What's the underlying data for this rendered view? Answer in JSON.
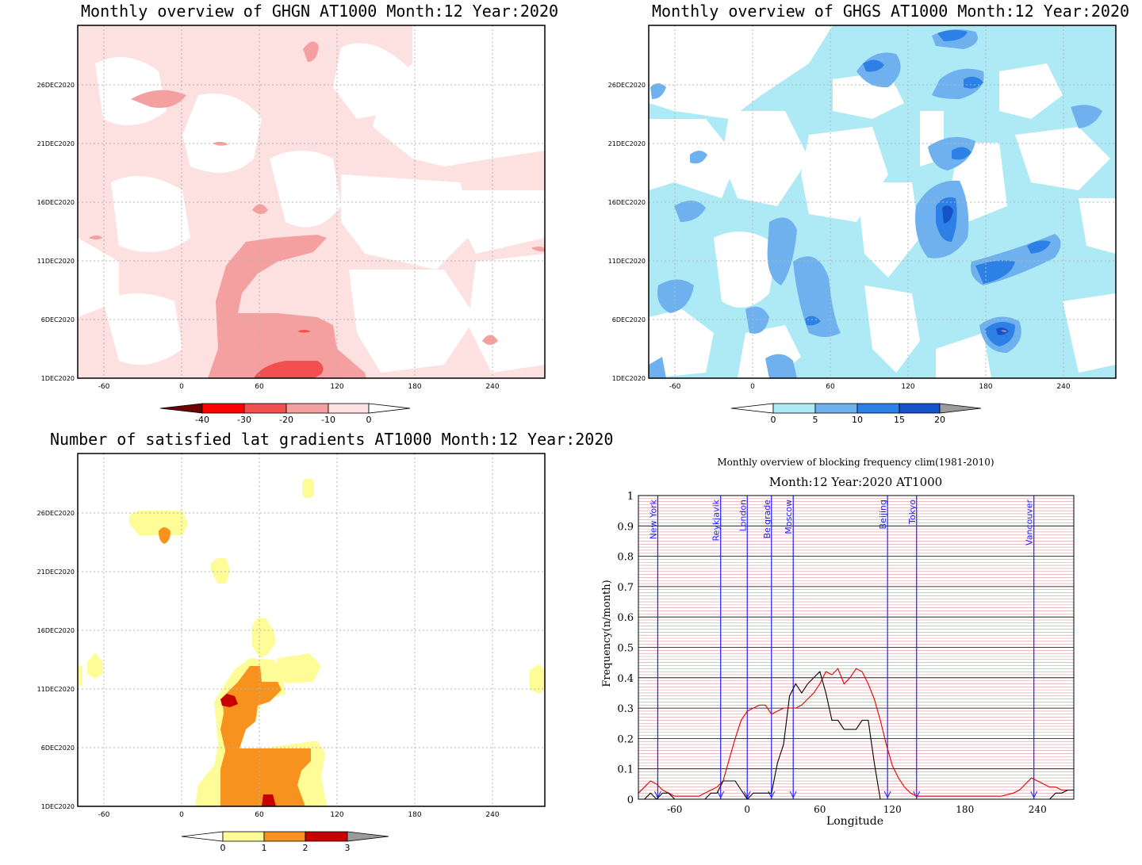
{
  "chart_data": [
    {
      "type": "heatmap",
      "title": "Monthly overview of GHGN AT1000 Month:12 Year:2020",
      "x_ticks": [
        "-60",
        "0",
        "60",
        "120",
        "180",
        "240"
      ],
      "y_ticks": [
        "1DEC2020",
        "6DEC2020",
        "11DEC2020",
        "16DEC2020",
        "21DEC2020",
        "26DEC2020"
      ],
      "colorbar": {
        "labels": [
          "-40",
          "-30",
          "-20",
          "-10",
          "0"
        ],
        "colors": [
          "#6e0000",
          "#ff0000",
          "#f25050",
          "#f5a0a0",
          "#fde0e0",
          "#ffffff"
        ]
      },
      "grid": true
    },
    {
      "type": "heatmap",
      "title": "Monthly overview of GHGS AT1000 Month:12 Year:2020",
      "x_ticks": [
        "-60",
        "0",
        "60",
        "120",
        "180",
        "240"
      ],
      "y_ticks": [
        "1DEC2020",
        "6DEC2020",
        "11DEC2020",
        "16DEC2020",
        "21DEC2020",
        "26DEC2020"
      ],
      "colorbar": {
        "labels": [
          "0",
          "5",
          "10",
          "15",
          "20"
        ],
        "colors": [
          "#ffffff",
          "#aeeaf5",
          "#6fb0ee",
          "#2d80e6",
          "#1551c8",
          "#9b9b9b"
        ]
      },
      "grid": true
    },
    {
      "type": "heatmap",
      "title": "Number of satisfied lat gradients AT1000 Month:12 Year:2020",
      "x_ticks": [
        "-60",
        "0",
        "60",
        "120",
        "180",
        "240"
      ],
      "y_ticks": [
        "1DEC2020",
        "6DEC2020",
        "11DEC2020",
        "16DEC2020",
        "21DEC2020",
        "26DEC2020"
      ],
      "colorbar": {
        "labels": [
          "0",
          "1",
          "2",
          "3"
        ],
        "colors": [
          "#ffffff",
          "#fefc97",
          "#f7921e",
          "#c80000",
          "#9b9b9b"
        ]
      },
      "grid": true
    },
    {
      "type": "line",
      "title": "Monthly overview of blocking frequency clim(1981-2010)",
      "subtitle": "Month:12 Year:2020  AT1000",
      "xlabel": "Longitude",
      "ylabel": "Frequency(n/month)",
      "xlim": [
        -90,
        270
      ],
      "ylim": [
        0,
        1
      ],
      "x_ticks": [
        "-60",
        "0",
        "60",
        "120",
        "180",
        "240"
      ],
      "y_ticks": [
        "0",
        "0.1",
        "0.2",
        "0.3",
        "0.4",
        "0.5",
        "0.6",
        "0.7",
        "0.8",
        "0.9",
        "1"
      ],
      "cities": [
        {
          "name": "New York",
          "lon": -74
        },
        {
          "name": "Reykjavik",
          "lon": -22
        },
        {
          "name": "London",
          "lon": 0
        },
        {
          "name": "Belgrade",
          "lon": 20
        },
        {
          "name": "Moscow",
          "lon": 38
        },
        {
          "name": "Beijing",
          "lon": 116
        },
        {
          "name": "Tokyo",
          "lon": 140
        },
        {
          "name": "Vancouver",
          "lon": 237
        }
      ],
      "series": [
        {
          "color": "#e00000",
          "x": [
            -90,
            -85,
            -80,
            -75,
            -70,
            -65,
            -60,
            -55,
            -50,
            -45,
            -40,
            -35,
            -30,
            -25,
            -20,
            -15,
            -10,
            -5,
            0,
            5,
            10,
            15,
            20,
            25,
            30,
            35,
            40,
            45,
            50,
            55,
            60,
            65,
            70,
            75,
            80,
            85,
            90,
            95,
            100,
            105,
            110,
            115,
            120,
            125,
            130,
            135,
            140,
            145,
            150,
            160,
            170,
            180,
            190,
            200,
            210,
            220,
            225,
            230,
            235,
            240,
            245,
            250,
            255,
            260,
            265,
            270
          ],
          "y": [
            0.02,
            0.04,
            0.06,
            0.05,
            0.03,
            0.02,
            0.01,
            0.01,
            0.01,
            0.01,
            0.01,
            0.02,
            0.03,
            0.04,
            0.06,
            0.13,
            0.2,
            0.26,
            0.29,
            0.3,
            0.31,
            0.31,
            0.28,
            0.29,
            0.3,
            0.3,
            0.3,
            0.31,
            0.33,
            0.35,
            0.38,
            0.42,
            0.41,
            0.43,
            0.38,
            0.4,
            0.43,
            0.42,
            0.38,
            0.33,
            0.26,
            0.18,
            0.11,
            0.07,
            0.04,
            0.02,
            0.01,
            0.01,
            0.01,
            0.01,
            0.01,
            0.01,
            0.01,
            0.01,
            0.01,
            0.02,
            0.03,
            0.05,
            0.07,
            0.06,
            0.05,
            0.04,
            0.04,
            0.03,
            0.03,
            0.03
          ]
        },
        {
          "color": "#000000",
          "x": [
            -90,
            -85,
            -80,
            -75,
            -70,
            -65,
            -60,
            -55,
            -50,
            -45,
            -40,
            -35,
            -30,
            -25,
            -20,
            -15,
            -10,
            -5,
            0,
            5,
            10,
            15,
            20,
            25,
            30,
            35,
            40,
            45,
            50,
            55,
            60,
            65,
            70,
            75,
            80,
            85,
            90,
            95,
            100,
            105,
            110,
            115,
            120,
            125,
            130,
            140,
            160,
            180,
            200,
            220,
            240,
            250,
            255,
            260,
            265,
            270
          ],
          "y": [
            0.0,
            0.0,
            0.02,
            0.0,
            0.02,
            0.02,
            0.0,
            0.0,
            0.0,
            0.0,
            0.0,
            0.0,
            0.02,
            0.02,
            0.06,
            0.06,
            0.06,
            0.03,
            0.0,
            0.02,
            0.02,
            0.02,
            0.02,
            0.12,
            0.18,
            0.34,
            0.38,
            0.35,
            0.38,
            0.4,
            0.42,
            0.35,
            0.26,
            0.26,
            0.23,
            0.23,
            0.23,
            0.26,
            0.26,
            0.12,
            0.0,
            0.0,
            0.0,
            0.0,
            0.0,
            0.0,
            0.0,
            0.0,
            0.0,
            0.0,
            0.0,
            0.0,
            0.02,
            0.02,
            0.03,
            0.03
          ]
        }
      ],
      "grid": true
    }
  ]
}
